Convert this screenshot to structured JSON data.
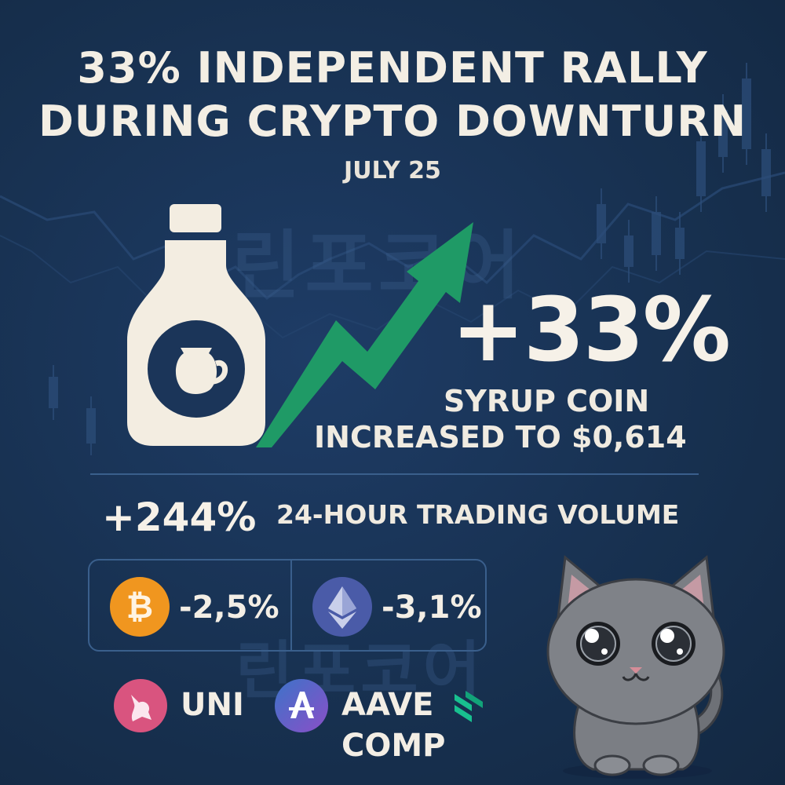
{
  "headline": {
    "line1": "33% INDEPENDENT RALLY",
    "line2": "DURING CRYPTO DOWNTURN"
  },
  "date": "JULY 25",
  "main_change": "+33%",
  "coin_line1": "SYRUP COIN",
  "coin_line2": "INCREASED TO $0,614",
  "volume": {
    "change": "+244%",
    "label": "24-HOUR TRADING VOLUME"
  },
  "market": {
    "btc_change": "-2,5%",
    "eth_change": "-3,1%"
  },
  "tokens": {
    "uni": "UNI",
    "aave": "AAVE",
    "comp": "COMP"
  },
  "colors": {
    "background": "#1a3358",
    "arrow_green": "#1f9a66",
    "btc_orange": "#f0961f",
    "eth_blue": "#4a5ba8",
    "uni_pink": "#d9547f",
    "aave_purple": "#5b5bc2",
    "comp_green": "#18c08f"
  },
  "icons": [
    "syrup-bottle-icon",
    "rising-arrow-icon",
    "bitcoin-icon",
    "ethereum-icon",
    "uniswap-icon",
    "aave-icon",
    "compound-icon",
    "cat-mascot"
  ]
}
